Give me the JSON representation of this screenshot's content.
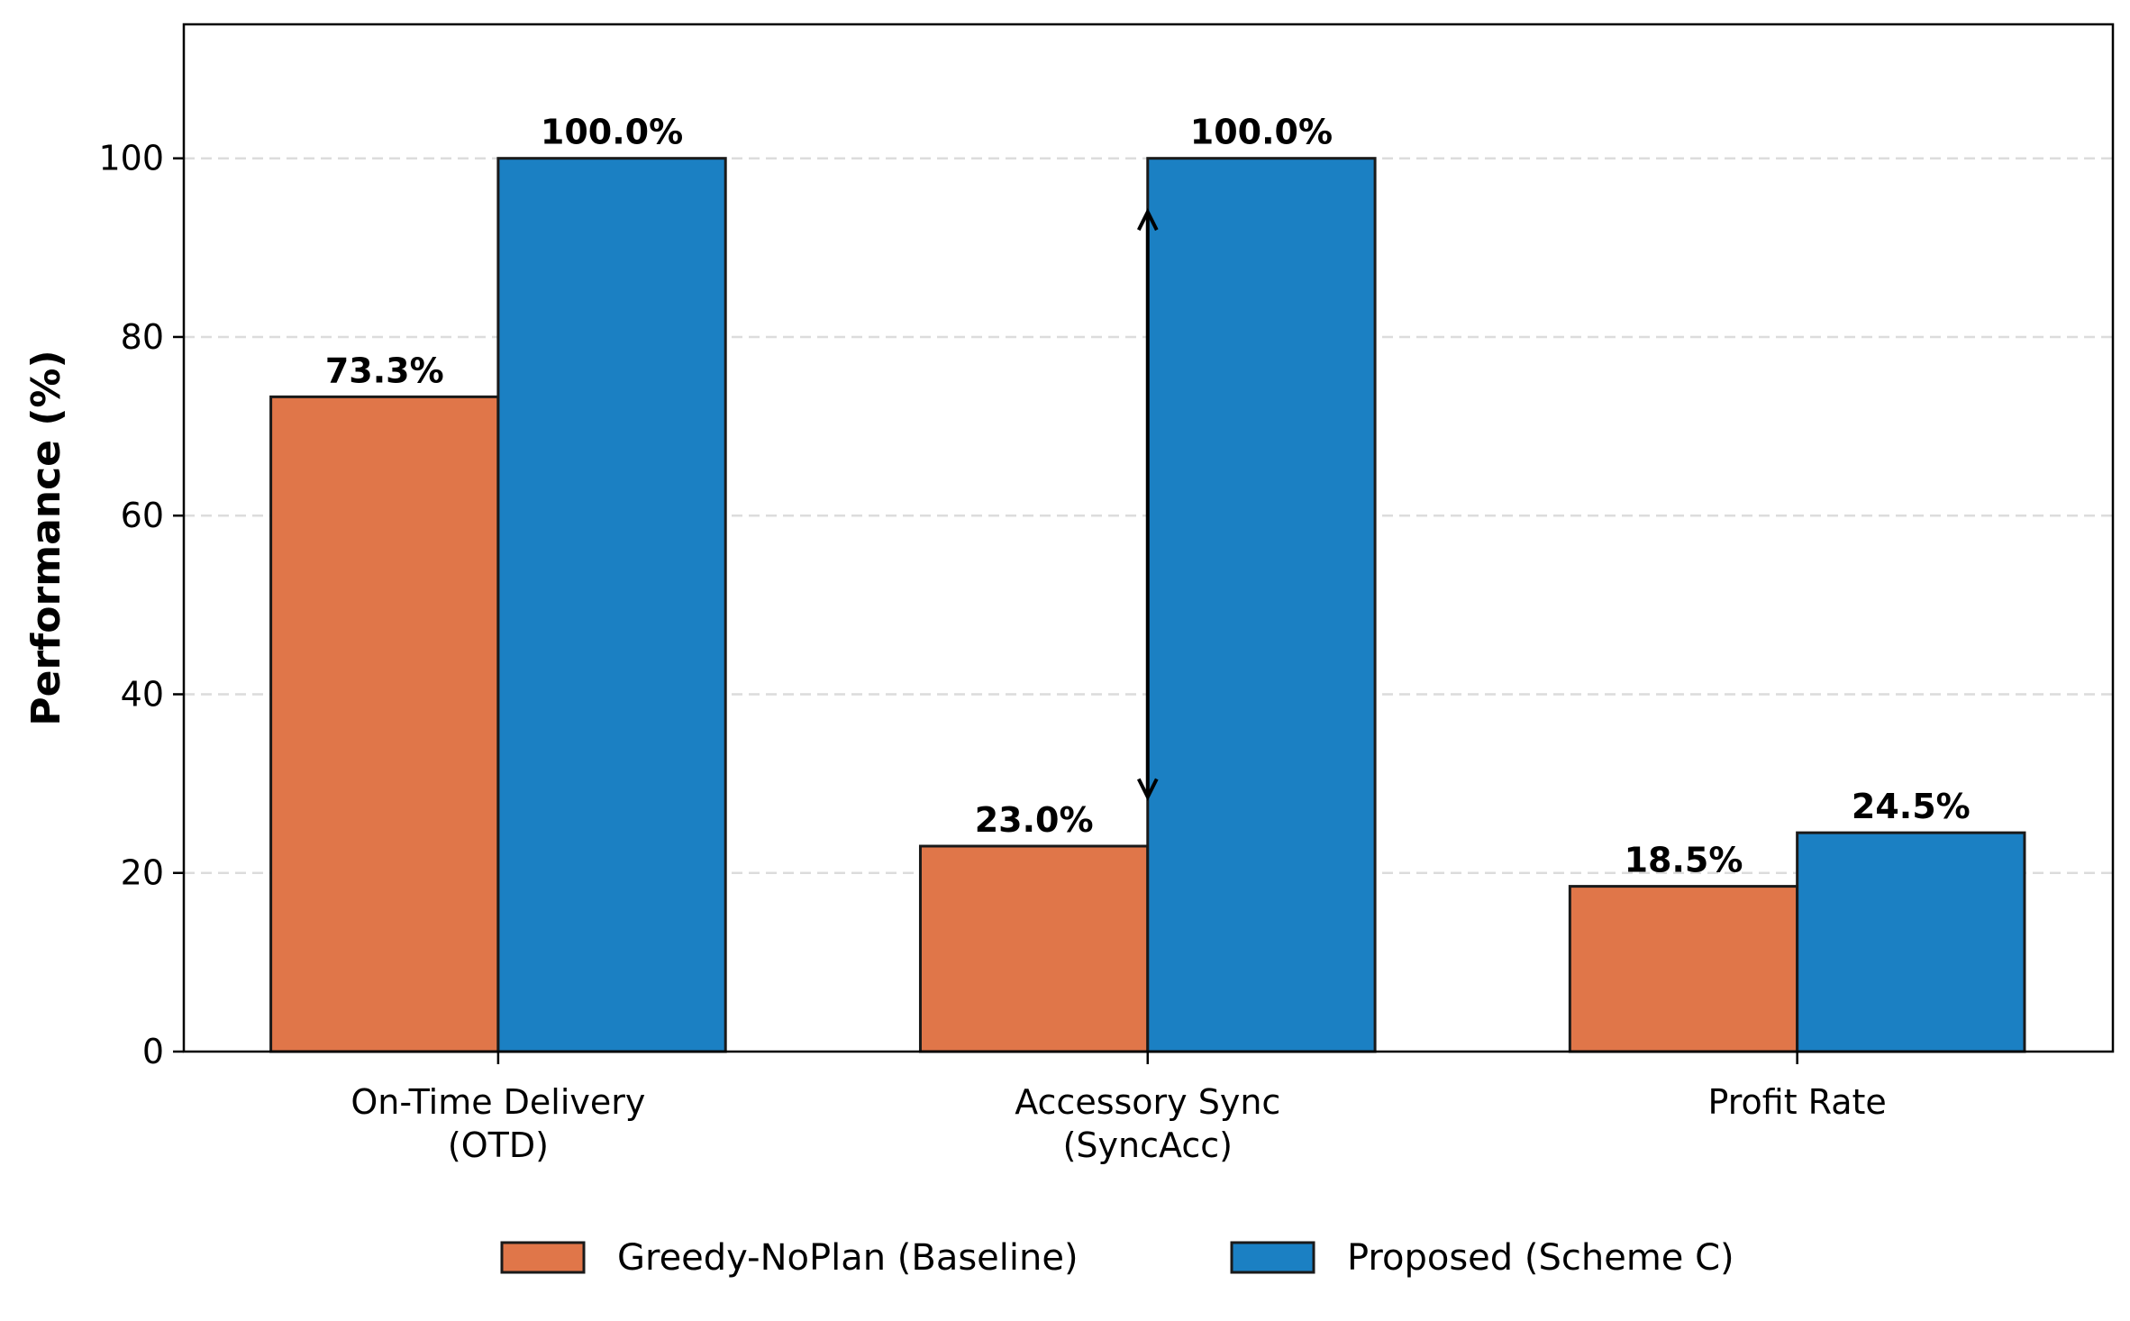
{
  "chart_data": {
    "type": "bar",
    "categories": [
      [
        "On-Time Delivery",
        "(OTD)"
      ],
      [
        "Accessory Sync",
        "(SyncAcc)"
      ],
      [
        "Profit Rate"
      ]
    ],
    "series": [
      {
        "name": "Greedy-NoPlan (Baseline)",
        "values": [
          73.3,
          23.0,
          18.5
        ],
        "labels": [
          "73.3%",
          "23.0%",
          "18.5%"
        ],
        "color": "#E07649"
      },
      {
        "name": "Proposed (Scheme C)",
        "values": [
          100.0,
          100.0,
          24.5
        ],
        "labels": [
          "100.0%",
          "100.0%",
          "24.5%"
        ],
        "color": "#1B80C3"
      }
    ],
    "title": "",
    "xlabel": "",
    "ylabel": "Performance (%)",
    "ylim": [
      0,
      115
    ],
    "yticks": [
      0,
      20,
      40,
      60,
      80,
      100
    ],
    "grid": "y-dashed",
    "legend": "bottom-center",
    "annotation": {
      "type": "double-arrow",
      "category": 1,
      "from": 28.5,
      "to": 94
    }
  }
}
